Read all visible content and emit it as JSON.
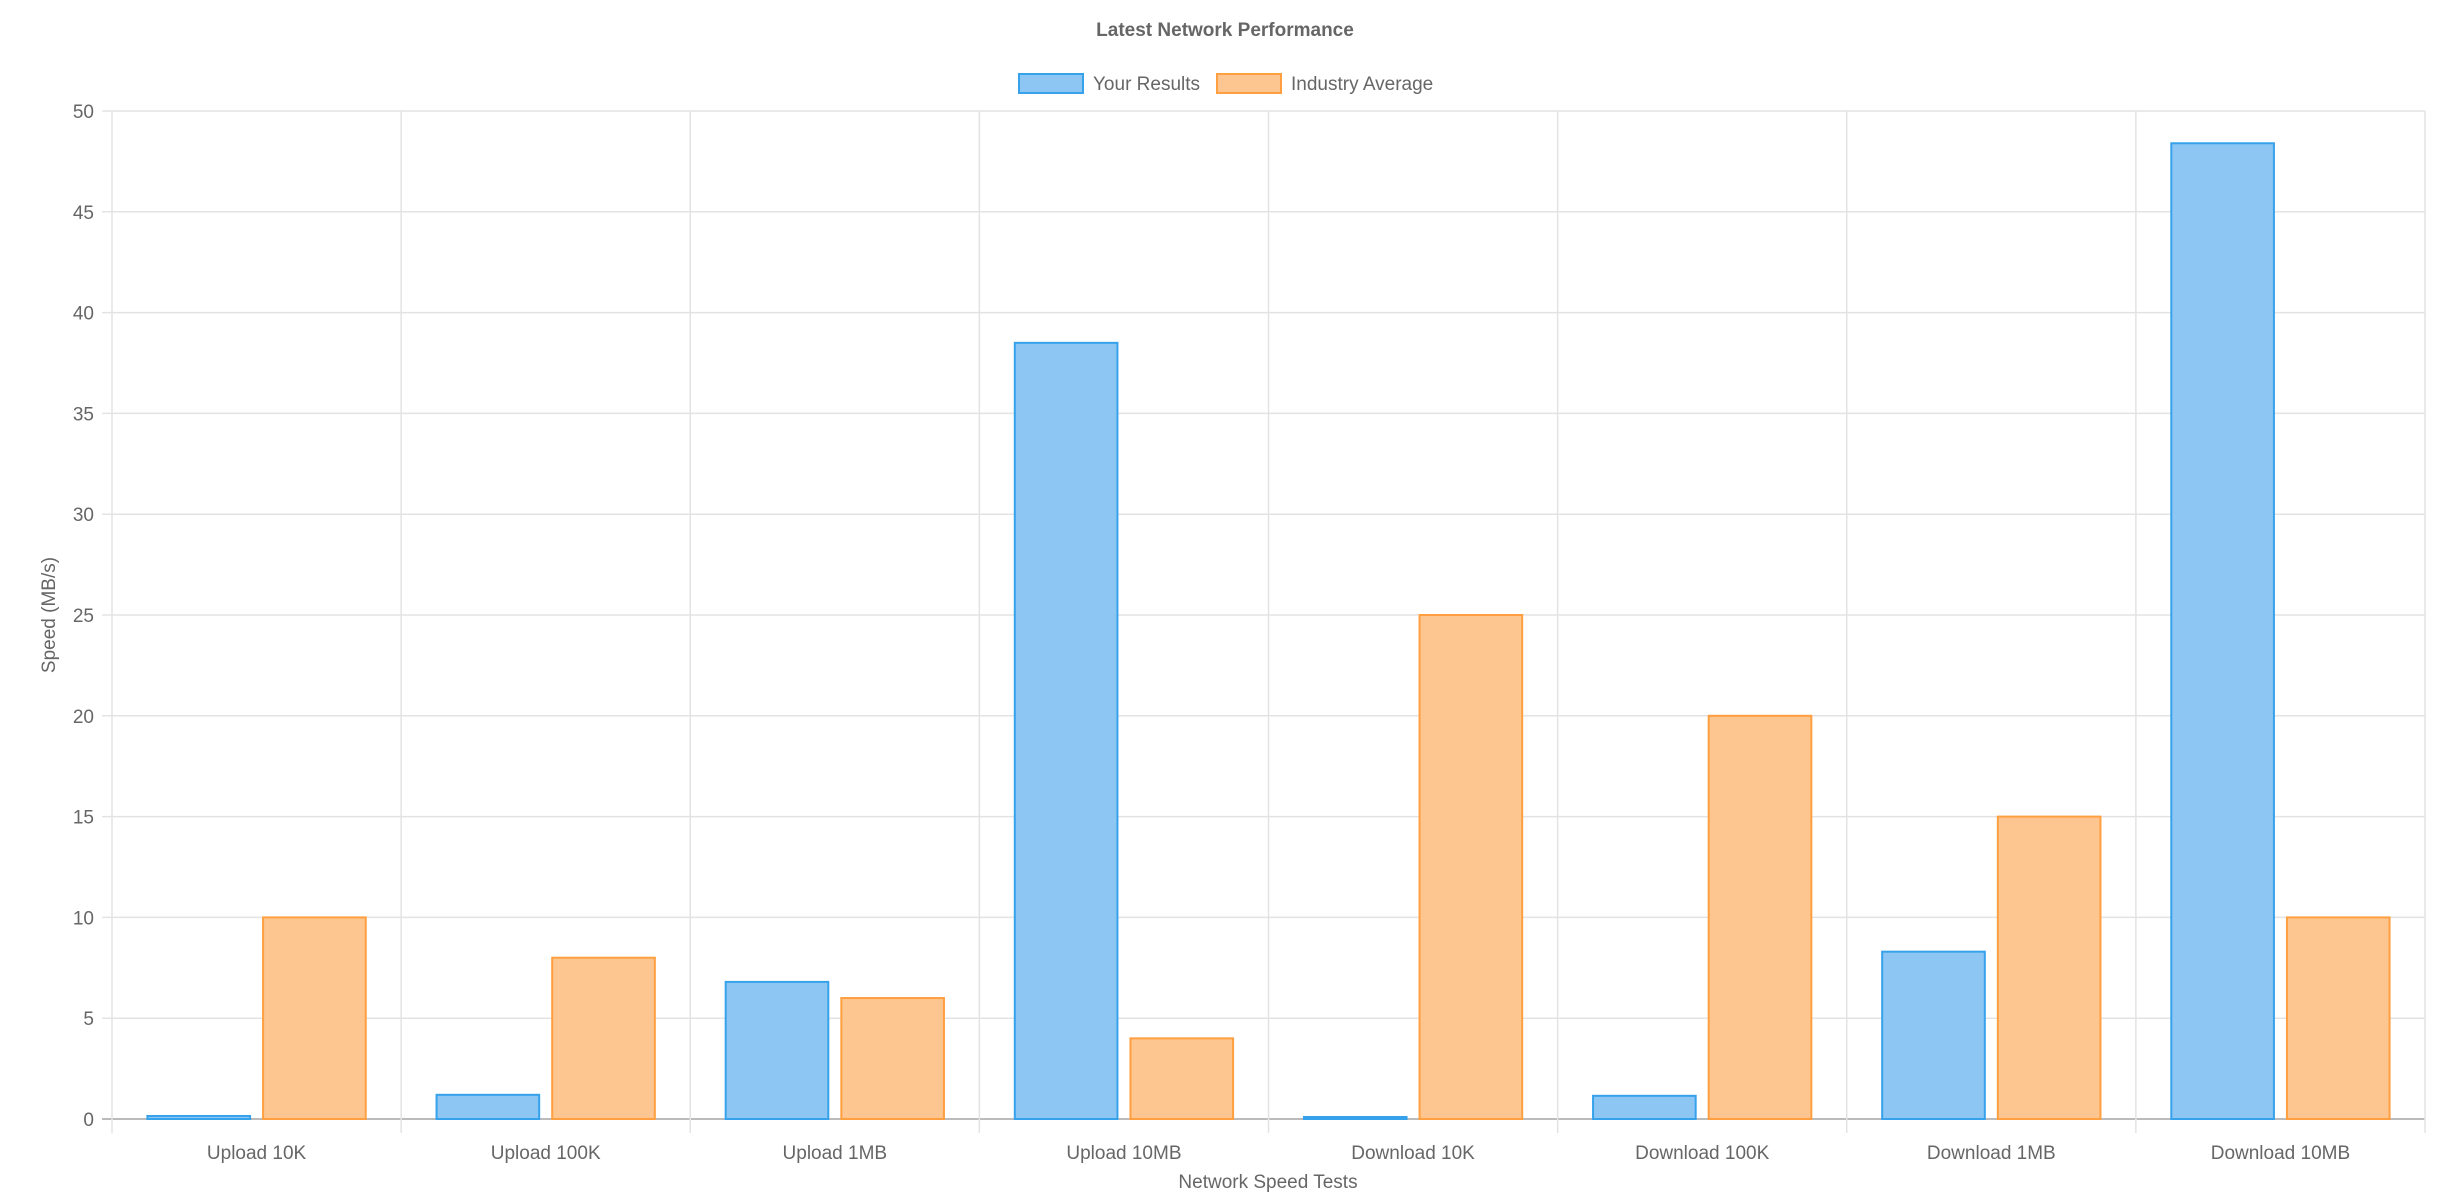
{
  "chart_data": {
    "type": "bar",
    "title": "Latest Network Performance",
    "xlabel": "Network Speed Tests",
    "ylabel": "Speed (MB/s)",
    "ylim": [
      0,
      50
    ],
    "yticks": [
      0,
      5,
      10,
      15,
      20,
      25,
      30,
      35,
      40,
      45,
      50
    ],
    "grid": true,
    "legend_position": "top",
    "categories": [
      "Upload 10K",
      "Upload 100K",
      "Upload 1MB",
      "Upload 10MB",
      "Download 10K",
      "Download 100K",
      "Download 1MB",
      "Download 10MB"
    ],
    "series": [
      {
        "name": "Your Results",
        "values": [
          0.15,
          1.2,
          6.8,
          38.5,
          0.1,
          1.15,
          8.3,
          48.4
        ],
        "fill": "#8dc6f2",
        "stroke": "#36a2eb"
      },
      {
        "name": "Industry Average",
        "values": [
          10,
          8,
          6,
          4,
          25,
          20,
          15,
          10
        ],
        "fill": "#fdc590",
        "stroke": "#ff9f40"
      }
    ]
  }
}
